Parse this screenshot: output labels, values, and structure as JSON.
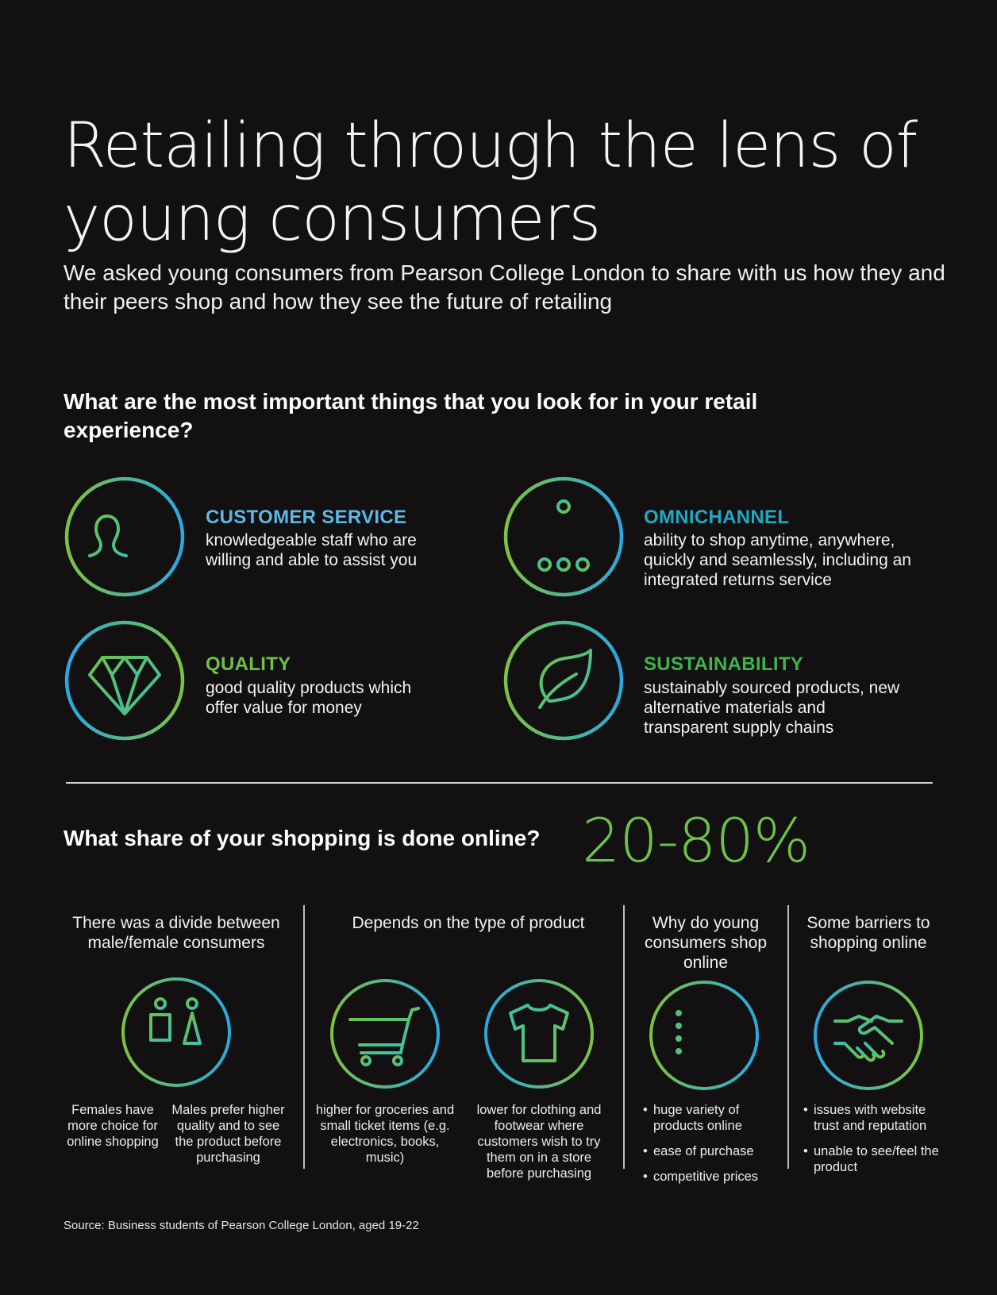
{
  "title": "Retailing through the lens of young consumers",
  "subtitle": "We asked young consumers from Pearson College London to share with us how they and their peers shop and how they see the future of retailing",
  "question1": "What are the most important things that you look for in your retail experience?",
  "features": [
    {
      "title": "CUSTOMER SERVICE",
      "desc": "knowledgeable staff who are willing and able to assist you",
      "icon": "customer-service-icon",
      "color": "#5cb8e6"
    },
    {
      "title": "OMNICHANNEL",
      "desc": "ability to shop anytime, anywhere, quickly and seamlessly, including an integrated returns service",
      "icon": "network-icon",
      "color": "#1fa9c4"
    },
    {
      "title": "QUALITY",
      "desc": "good quality products which offer value for money",
      "icon": "diamond-icon",
      "color": "#6cc24a"
    },
    {
      "title": "SUSTAINABILITY",
      "desc": "sustainably sourced products, new alternative materials and transparent supply chains",
      "icon": "leaf-icon",
      "color": "#3fb54a"
    }
  ],
  "question2": "What share of your shopping is done online?",
  "share_value": "20-80%",
  "columns": {
    "gender": {
      "heading": "There was a divide between male/female consumers",
      "females": "Females have more choice for online shopping",
      "males": "Males prefer higher quality and to see the product before purchasing"
    },
    "product": {
      "heading": "Depends on the type of product",
      "groceries": "higher for groceries and small ticket items (e.g. electronics, books, music)",
      "clothing": "lower for clothing and footwear where customers wish to try them on in a store before purchasing"
    },
    "why": {
      "heading": "Why do young consumers shop online",
      "bullets": [
        "huge variety of products online",
        "ease of purchase",
        "competitive prices"
      ]
    },
    "barriers": {
      "heading": "Some barriers to shopping online",
      "bullets": [
        "issues with website trust and reputation",
        "unable to see/feel the product"
      ]
    }
  },
  "source": "Source: Business students of Pearson College London, aged 19-22",
  "colors": {
    "background": "#121010",
    "green": "#6cc24a",
    "blue": "#2aa8e0",
    "teal": "#3cbfae"
  }
}
